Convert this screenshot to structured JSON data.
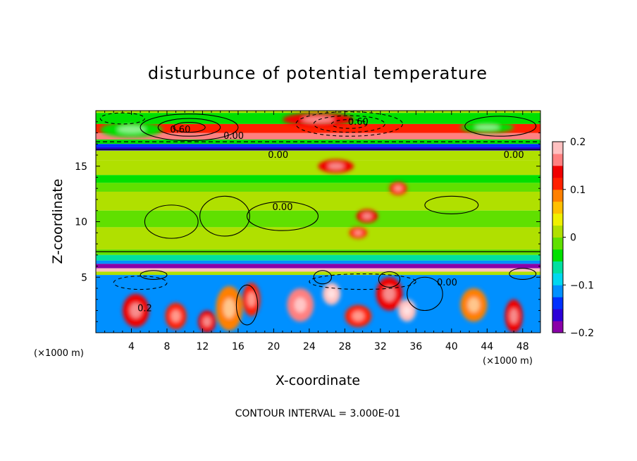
{
  "chart_data": {
    "type": "heatmap",
    "title": "disturbunce of potential temperature",
    "xlabel": "X-coordinate",
    "ylabel": "Z-coordinate",
    "x_unit": "(×1000 m)",
    "y_unit": "(×1000 m)",
    "xlim": [
      0,
      50
    ],
    "ylim": [
      0,
      20
    ],
    "x_ticks": [
      4,
      8,
      12,
      16,
      20,
      24,
      28,
      32,
      36,
      40,
      44,
      48
    ],
    "y_ticks": [
      5,
      10,
      15
    ],
    "colorbar": {
      "range": [
        -0.2,
        0.2
      ],
      "tick_labels": [
        "0.2",
        "0.1",
        "0",
        "−0.1",
        "−0.2"
      ],
      "tick_values": [
        0.2,
        0.1,
        0,
        -0.1,
        -0.2
      ],
      "colors": [
        "#8a00a8",
        "#2c00d8",
        "#0030ff",
        "#0090ff",
        "#00d8f0",
        "#00e0a0",
        "#00e000",
        "#60e000",
        "#b0e000",
        "#f0f000",
        "#ffc000",
        "#ff8000",
        "#ff2000",
        "#f00000",
        "#ff8080",
        "#ffc0c0"
      ]
    },
    "contour_interval_text": "CONTOUR INTERVAL = 3.000E-01",
    "contour_labels": [
      {
        "text": "0.60",
        "x": 9.5,
        "z": 18.3
      },
      {
        "text": "0.00",
        "x": 15.5,
        "z": 17.7
      },
      {
        "text": "0.60",
        "x": 29.5,
        "z": 19.0
      },
      {
        "text": "0.00",
        "x": 20.5,
        "z": 16.0
      },
      {
        "text": "0.00",
        "x": 47.0,
        "z": 16.0
      },
      {
        "text": "0.00",
        "x": 21.0,
        "z": 11.3
      },
      {
        "text": "0.00",
        "x": 39.5,
        "z": 4.5
      },
      {
        "text": "0.2",
        "x": 5.5,
        "z": 2.2
      }
    ],
    "bands": [
      {
        "z0": 19.8,
        "z1": 20.0,
        "val": 0.0
      },
      {
        "z0": 18.8,
        "z1": 19.8,
        "val": -0.05
      },
      {
        "z0": 18.0,
        "z1": 18.8,
        "val": 0.12
      },
      {
        "z0": 17.4,
        "z1": 18.0,
        "val": 0.17
      },
      {
        "z0": 17.0,
        "z1": 17.4,
        "val": -0.03
      },
      {
        "z0": 16.7,
        "z1": 17.0,
        "val": -0.13
      },
      {
        "z0": 16.4,
        "z1": 16.7,
        "val": -0.16
      },
      {
        "z0": 15.5,
        "z1": 16.4,
        "val": 0.0
      },
      {
        "z0": 14.2,
        "z1": 15.5,
        "val": 0.01
      },
      {
        "z0": 13.5,
        "z1": 14.2,
        "val": -0.04
      },
      {
        "z0": 12.7,
        "z1": 13.5,
        "val": -0.02
      },
      {
        "z0": 11.0,
        "z1": 12.7,
        "val": 0.0
      },
      {
        "z0": 9.5,
        "z1": 11.0,
        "val": -0.01
      },
      {
        "z0": 7.5,
        "z1": 9.5,
        "val": 0.0
      },
      {
        "z0": 7.0,
        "z1": 7.5,
        "val": -0.02
      },
      {
        "z0": 6.5,
        "z1": 7.0,
        "val": -0.06
      },
      {
        "z0": 6.2,
        "z1": 6.5,
        "val": -0.12
      },
      {
        "z0": 5.8,
        "z1": 6.2,
        "val": -0.18
      },
      {
        "z0": 5.5,
        "z1": 5.8,
        "val": 0.21
      },
      {
        "z0": 5.2,
        "z1": 5.5,
        "val": 0.0
      },
      {
        "z0": 0.0,
        "z1": 5.2,
        "val": -0.12
      }
    ],
    "blobs": [
      {
        "x": 4.5,
        "z": 2.0,
        "rx": 1.5,
        "rz": 1.5,
        "val": 0.15
      },
      {
        "x": 9.0,
        "z": 1.5,
        "rx": 1.2,
        "rz": 1.2,
        "val": 0.12
      },
      {
        "x": 15.0,
        "z": 2.2,
        "rx": 1.5,
        "rz": 2.0,
        "val": 0.08
      },
      {
        "x": 17.5,
        "z": 3.0,
        "rx": 1.0,
        "rz": 1.5,
        "val": 0.1
      },
      {
        "x": 12.5,
        "z": 1.0,
        "rx": 1.0,
        "rz": 1.0,
        "val": 0.15
      },
      {
        "x": 23.0,
        "z": 2.5,
        "rx": 1.5,
        "rz": 1.5,
        "val": 0.17
      },
      {
        "x": 26.5,
        "z": 3.5,
        "rx": 1.0,
        "rz": 1.0,
        "val": 0.2
      },
      {
        "x": 29.5,
        "z": 1.5,
        "rx": 1.5,
        "rz": 1.0,
        "val": 0.12
      },
      {
        "x": 33.0,
        "z": 3.5,
        "rx": 1.5,
        "rz": 1.5,
        "val": 0.15
      },
      {
        "x": 35.0,
        "z": 2.0,
        "rx": 1.0,
        "rz": 1.0,
        "val": 0.2
      },
      {
        "x": 42.5,
        "z": 2.5,
        "rx": 1.5,
        "rz": 1.5,
        "val": 0.08
      },
      {
        "x": 47.0,
        "z": 1.5,
        "rx": 1.0,
        "rz": 1.5,
        "val": 0.15
      },
      {
        "x": 30.5,
        "z": 10.5,
        "rx": 1.2,
        "rz": 0.6,
        "val": 0.15
      },
      {
        "x": 29.5,
        "z": 9.0,
        "rx": 1.0,
        "rz": 0.5,
        "val": 0.12
      },
      {
        "x": 27.0,
        "z": 15.0,
        "rx": 2.0,
        "rz": 0.6,
        "val": 0.15
      },
      {
        "x": 34.0,
        "z": 13.0,
        "rx": 1.0,
        "rz": 0.6,
        "val": 0.12
      },
      {
        "x": 4.0,
        "z": 18.3,
        "rx": 3.5,
        "rz": 0.7,
        "val": -0.03
      },
      {
        "x": 25.0,
        "z": 19.2,
        "rx": 4.0,
        "rz": 0.6,
        "val": 0.15
      },
      {
        "x": 44.0,
        "z": 18.5,
        "rx": 3.0,
        "rz": 0.5,
        "val": -0.04
      }
    ],
    "contours": [
      {
        "cx": 10.5,
        "cz": 18.5,
        "rx": 5.5,
        "rz": 1.2,
        "style": "solid"
      },
      {
        "cx": 10.5,
        "cz": 18.5,
        "rx": 3.5,
        "rz": 0.8,
        "style": "solid"
      },
      {
        "cx": 10.5,
        "cz": 18.5,
        "rx": 1.8,
        "rz": 0.45,
        "style": "solid"
      },
      {
        "cx": 28.5,
        "cz": 18.8,
        "rx": 6.0,
        "rz": 1.1,
        "style": "dashed"
      },
      {
        "cx": 28.5,
        "cz": 18.8,
        "rx": 4.0,
        "rz": 0.75,
        "style": "dashed"
      },
      {
        "cx": 28.5,
        "cz": 18.8,
        "rx": 2.0,
        "rz": 0.4,
        "style": "dashed"
      },
      {
        "cx": 45.5,
        "cz": 18.6,
        "rx": 4.0,
        "rz": 0.9,
        "style": "solid"
      },
      {
        "cx": 3.0,
        "cz": 19.3,
        "rx": 2.5,
        "rz": 0.5,
        "style": "dashed"
      },
      {
        "cx": 14.5,
        "cz": 10.5,
        "rx": 2.8,
        "rz": 1.8,
        "style": "solid"
      },
      {
        "cx": 8.5,
        "cz": 10.0,
        "rx": 3.0,
        "rz": 1.5,
        "style": "solid"
      },
      {
        "cx": 21.0,
        "cz": 10.5,
        "rx": 4.0,
        "rz": 1.3,
        "style": "solid"
      },
      {
        "cx": 40.0,
        "cz": 11.5,
        "rx": 3.0,
        "rz": 0.8,
        "style": "solid"
      },
      {
        "cx": 5.0,
        "cz": 4.5,
        "rx": 3.0,
        "rz": 0.6,
        "style": "dashed"
      },
      {
        "cx": 30.0,
        "cz": 4.6,
        "rx": 6.0,
        "rz": 0.7,
        "style": "dashed"
      },
      {
        "cx": 37.0,
        "cz": 3.5,
        "rx": 2.0,
        "rz": 1.5,
        "style": "solid"
      },
      {
        "cx": 17.0,
        "cz": 2.5,
        "rx": 1.2,
        "rz": 1.8,
        "style": "solid"
      },
      {
        "cx": 25.5,
        "cz": 5.0,
        "rx": 1.0,
        "rz": 0.6,
        "style": "solid"
      },
      {
        "cx": 33.0,
        "cz": 4.8,
        "rx": 1.2,
        "rz": 0.7,
        "style": "solid"
      },
      {
        "cx": 6.5,
        "cz": 5.2,
        "rx": 1.5,
        "rz": 0.4,
        "style": "solid"
      },
      {
        "cx": 48.0,
        "cz": 5.3,
        "rx": 1.5,
        "rz": 0.5,
        "style": "solid"
      }
    ],
    "hlines": [
      {
        "z": 16.5,
        "style": "solid"
      },
      {
        "z": 7.3,
        "style": "solid"
      },
      {
        "z": 17.2,
        "style": "dashed"
      }
    ]
  }
}
